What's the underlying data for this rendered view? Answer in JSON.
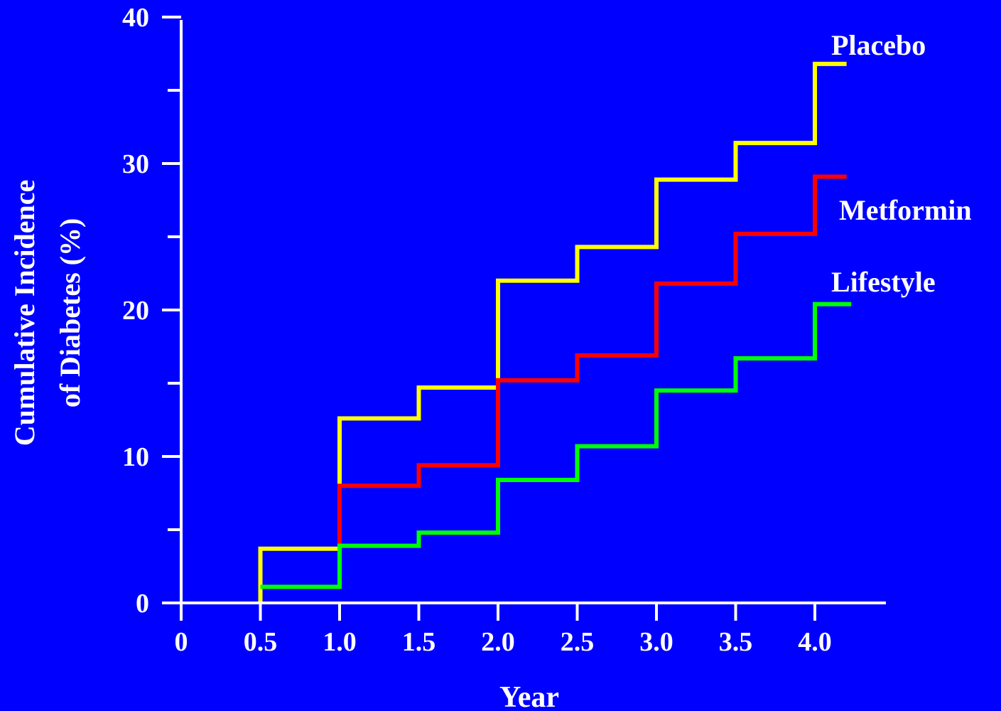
{
  "chart_data": {
    "type": "line",
    "step": true,
    "title": "",
    "xlabel": "Year",
    "ylabel": [
      "Cumulative Incidence",
      "of Diabetes (%)"
    ],
    "xlim": [
      0,
      4.4
    ],
    "ylim": [
      0,
      40
    ],
    "x_ticks": [
      0,
      0.5,
      1.0,
      1.5,
      2.0,
      2.5,
      3.0,
      3.5,
      4.0
    ],
    "x_tick_labels": [
      "0",
      "0.5",
      "1.0",
      "1.5",
      "2.0",
      "2.5",
      "3.0",
      "3.5",
      "4.0"
    ],
    "y_ticks": [
      0,
      10,
      20,
      30,
      40
    ],
    "y_tick_labels": [
      "0",
      "10",
      "20",
      "30",
      "40"
    ],
    "y_minor_ticks": [
      5,
      15,
      25,
      35
    ],
    "grid": false,
    "legend": "labels at right end of lines",
    "background": "#0000FF",
    "axis_color": "#FFFFFF",
    "series": [
      {
        "name": "Placebo",
        "color": "#FFFF00",
        "x": [
          0.5,
          0.5,
          1.0,
          1.5,
          2.0,
          2.5,
          3.0,
          3.5,
          4.0,
          4.2
        ],
        "y": [
          0,
          3.7,
          12.6,
          14.7,
          22.0,
          24.3,
          28.9,
          31.4,
          36.8,
          36.8
        ]
      },
      {
        "name": "Metformin",
        "color": "#FF0000",
        "x": [
          1.0,
          1.0,
          1.5,
          2.0,
          2.5,
          3.0,
          3.5,
          4.0,
          4.2
        ],
        "y": [
          3.7,
          8.0,
          9.4,
          15.2,
          16.9,
          21.8,
          25.2,
          29.1,
          29.1
        ]
      },
      {
        "name": "Lifestyle",
        "color": "#00FF00",
        "x": [
          0.5,
          1.0,
          1.5,
          2.0,
          2.5,
          3.0,
          3.5,
          4.0,
          4.23
        ],
        "y": [
          1.1,
          3.9,
          4.8,
          8.4,
          10.7,
          14.5,
          16.7,
          20.4,
          20.4
        ]
      }
    ]
  }
}
